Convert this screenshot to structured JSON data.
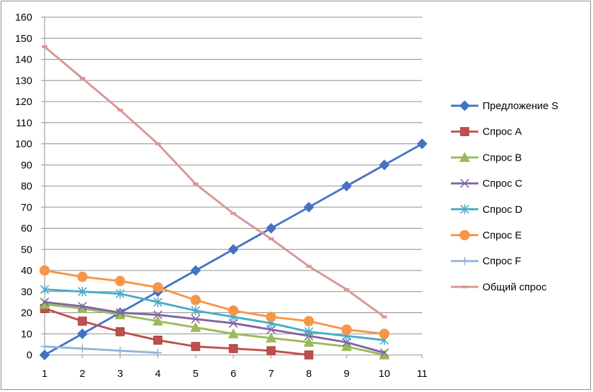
{
  "chart_data": {
    "type": "line",
    "title": "",
    "xlabel": "",
    "ylabel": "",
    "x": [
      1,
      2,
      3,
      4,
      5,
      6,
      7,
      8,
      9,
      10,
      11
    ],
    "xlim": [
      1,
      11
    ],
    "ylim": [
      0,
      160
    ],
    "yticks": [
      0,
      10,
      20,
      30,
      40,
      50,
      60,
      70,
      80,
      90,
      100,
      110,
      120,
      130,
      140,
      150,
      160
    ],
    "xticks": [
      1,
      2,
      3,
      4,
      5,
      6,
      7,
      8,
      9,
      10,
      11
    ],
    "grid": "horizontal",
    "legend_position": "right",
    "series": [
      {
        "name": "Предложение S",
        "color": "#4472C4",
        "marker": "diamond",
        "x": [
          1,
          2,
          3,
          4,
          5,
          6,
          7,
          8,
          9,
          10,
          11
        ],
        "values": [
          0,
          10,
          20,
          30,
          40,
          50,
          60,
          70,
          80,
          90,
          100
        ]
      },
      {
        "name": "Спрос A",
        "color": "#C0504D",
        "marker": "square",
        "x": [
          1,
          2,
          3,
          4,
          5,
          6,
          7,
          8
        ],
        "values": [
          22,
          16,
          11,
          7,
          4,
          3,
          2,
          0
        ]
      },
      {
        "name": "Спрос B",
        "color": "#9BBB59",
        "marker": "triangle",
        "x": [
          1,
          2,
          3,
          4,
          5,
          6,
          7,
          8,
          9,
          10
        ],
        "values": [
          24,
          22,
          19,
          16,
          13,
          10,
          8,
          6,
          4,
          0
        ]
      },
      {
        "name": "Спрос C",
        "color": "#8064A2",
        "marker": "x",
        "x": [
          1,
          2,
          3,
          4,
          5,
          6,
          7,
          8,
          9,
          10
        ],
        "values": [
          25,
          23,
          20,
          19,
          17,
          15,
          12,
          9,
          6,
          1
        ]
      },
      {
        "name": "Спрос D",
        "color": "#4BACC6",
        "marker": "star",
        "x": [
          1,
          2,
          3,
          4,
          5,
          6,
          7,
          8,
          9,
          10
        ],
        "values": [
          31,
          30,
          29,
          25,
          21,
          18,
          15,
          11,
          9,
          7
        ]
      },
      {
        "name": "Спрос E",
        "color": "#F79646",
        "marker": "circle",
        "x": [
          1,
          2,
          3,
          4,
          5,
          6,
          7,
          8,
          9,
          10
        ],
        "values": [
          40,
          37,
          35,
          32,
          26,
          21,
          18,
          16,
          12,
          10
        ]
      },
      {
        "name": "Спрос F",
        "color": "#95B3D7",
        "marker": "plus",
        "x": [
          1,
          2,
          3,
          4
        ],
        "values": [
          4,
          3,
          2,
          1
        ]
      },
      {
        "name": "Общий спрос",
        "color": "#D99694",
        "marker": "dash",
        "x": [
          1,
          2,
          3,
          4,
          5,
          6,
          7,
          8,
          9,
          10
        ],
        "values": [
          146,
          131,
          116,
          100,
          81,
          67,
          55,
          42,
          31,
          18
        ]
      }
    ]
  }
}
